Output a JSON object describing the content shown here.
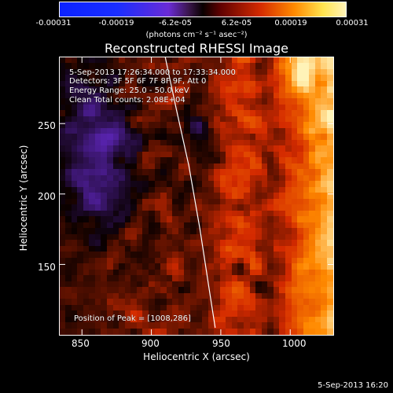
{
  "colorbar": {
    "tick_labels": [
      "-0.00031",
      "-0.00019",
      "-6.2e-05",
      "6.2e-05",
      "0.00019",
      "0.00031"
    ],
    "unit_label": "(photons cm⁻² s⁻¹ asec⁻²)",
    "colors": [
      "#0b22ff",
      "#6a2bd6",
      "#090000",
      "#d42a00",
      "#ff8a00",
      "#fff3b8"
    ]
  },
  "plot": {
    "title": "Reconstructed RHESSI Image",
    "info_lines": [
      "5-Sep-2013 17:26:34.000 to 17:33:34.000",
      "Detectors: 3F 5F 6F 7F 8F 9F, Att 0",
      "Energy Range: 25.0 - 50.0 keV",
      "Clean    Total counts: 2.08E+04"
    ],
    "peak_text": "Position of Peak = [1008,286]",
    "xlabel": "Heliocentric X (arcsec)",
    "ylabel": "Heliocentric Y (arcsec)",
    "x_ticks": [
      "850",
      "900",
      "950",
      "1000"
    ],
    "y_ticks": [
      "150",
      "200",
      "250"
    ],
    "timestamp": "5-Sep-2013 16:20"
  },
  "chart_data": {
    "type": "heatmap",
    "title": "Reconstructed RHESSI Image",
    "xlabel": "Heliocentric X (arcsec)",
    "ylabel": "Heliocentric Y (arcsec)",
    "xlim": [
      834,
      1031
    ],
    "ylim": [
      100,
      297
    ],
    "x_ticks": [
      850,
      900,
      950,
      1000
    ],
    "y_ticks": [
      150,
      200,
      250
    ],
    "colorbar_range": [
      -0.00031,
      0.00031
    ],
    "colorbar_ticks": [
      -0.00031,
      -0.00019,
      -6.2e-05,
      6.2e-05,
      0.00019,
      0.00031
    ],
    "peak_position": [
      1008,
      286
    ],
    "limb_curve": {
      "x": [
        910,
        918,
        927,
        935,
        942,
        946
      ],
      "y": [
        297,
        260,
        220,
        175,
        130,
        105
      ]
    }
  }
}
